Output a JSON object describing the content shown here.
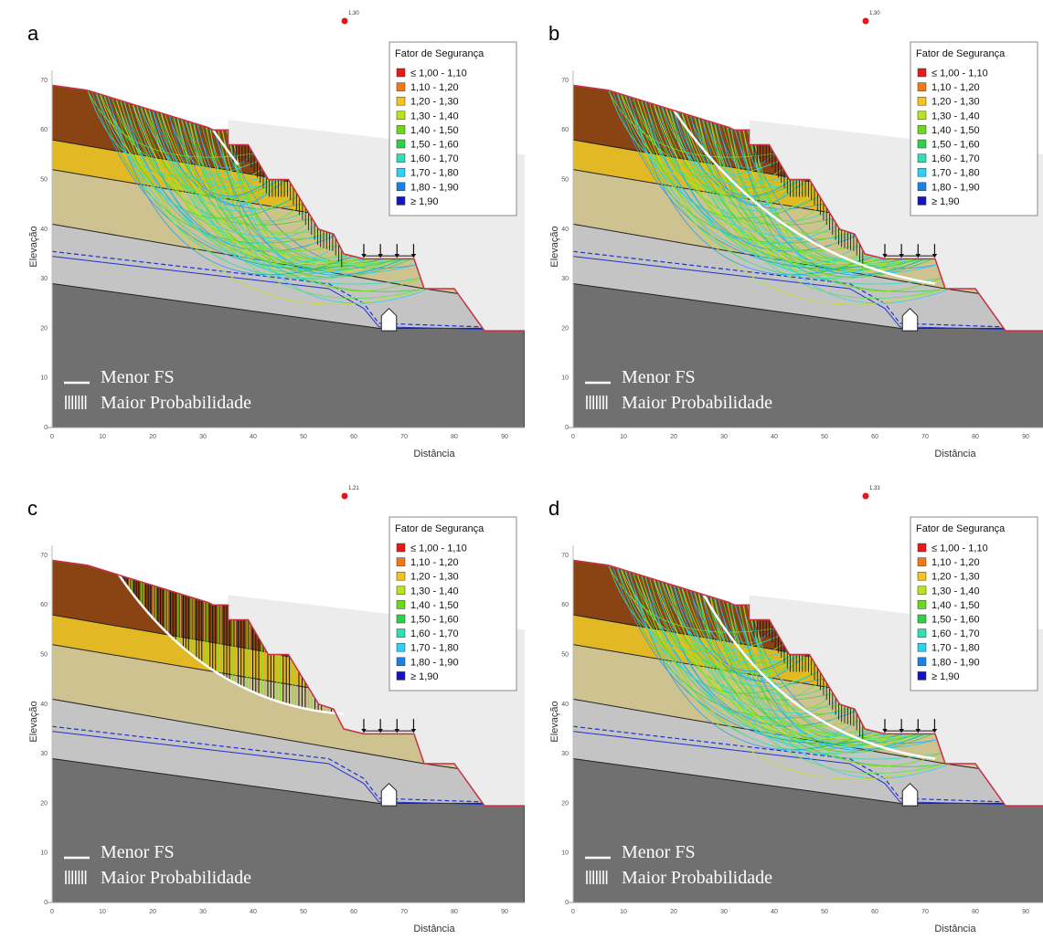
{
  "panels": [
    {
      "label": "a",
      "fs": "1,30"
    },
    {
      "label": "b",
      "fs": "1,30"
    },
    {
      "label": "c",
      "fs": "1,21"
    },
    {
      "label": "d",
      "fs": "1,33"
    }
  ],
  "legend": {
    "title": "Fator de Segurança",
    "items": [
      {
        "label": "≤ 1,00 - 1,10",
        "color": "#e41a1c"
      },
      {
        "label": "1,10 - 1,20",
        "color": "#f07a18"
      },
      {
        "label": "1,20 - 1,30",
        "color": "#f0c428"
      },
      {
        "label": "1,30 - 1,40",
        "color": "#b8e424"
      },
      {
        "label": "1,40 - 1,50",
        "color": "#6cd81c"
      },
      {
        "label": "1,50 - 1,60",
        "color": "#30d048"
      },
      {
        "label": "1,60 - 1,70",
        "color": "#30e0b4"
      },
      {
        "label": "1,70 - 1,80",
        "color": "#30d0f4"
      },
      {
        "label": "1,80 - 1,90",
        "color": "#2080e0"
      },
      {
        "label": "≥ 1,90",
        "color": "#1414c0"
      }
    ]
  },
  "axes": {
    "x_label": "Distância",
    "y_label": "Elevação",
    "xticks": [
      0,
      10,
      20,
      30,
      40,
      50,
      60,
      70,
      80,
      90
    ],
    "yticks": [
      0,
      10,
      20,
      30,
      40,
      50,
      60,
      70
    ]
  },
  "notes": {
    "min_fs": "Menor FS",
    "max_prob": "Maior Probabilidade"
  }
}
